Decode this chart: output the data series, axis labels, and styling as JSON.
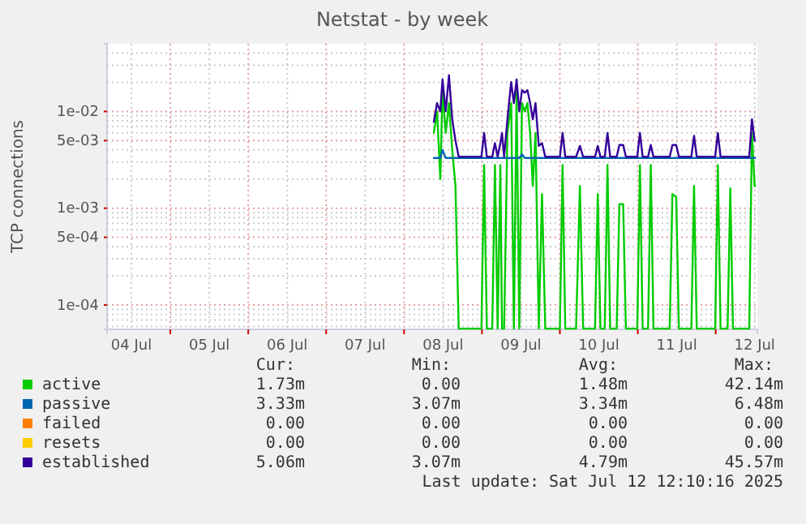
{
  "chart_data": {
    "type": "line",
    "title": "Netstat - by week",
    "ylabel": "TCP connections",
    "log": true,
    "grid": true,
    "legend": "bottom",
    "xlim": [
      "2025-07-04T04:30",
      "2025-07-12T12:50"
    ],
    "xticks": [
      {
        "value": "2025-07-04T12:00",
        "label": "04 Jul"
      },
      {
        "value": "2025-07-05T00:00",
        "label": null
      },
      {
        "value": "2025-07-05T12:00",
        "label": "05 Jul"
      },
      {
        "value": "2025-07-06T00:00",
        "label": null
      },
      {
        "value": "2025-07-06T12:00",
        "label": "06 Jul"
      },
      {
        "value": "2025-07-07T00:00",
        "label": null
      },
      {
        "value": "2025-07-07T12:00",
        "label": "07 Jul"
      },
      {
        "value": "2025-07-08T00:00",
        "label": null
      },
      {
        "value": "2025-07-08T12:00",
        "label": "08 Jul"
      },
      {
        "value": "2025-07-09T00:00",
        "label": null
      },
      {
        "value": "2025-07-09T12:00",
        "label": "09 Jul"
      },
      {
        "value": "2025-07-10T00:00",
        "label": null
      },
      {
        "value": "2025-07-10T12:00",
        "label": "10 Jul"
      },
      {
        "value": "2025-07-11T00:00",
        "label": null
      },
      {
        "value": "2025-07-11T12:00",
        "label": "11 Jul"
      },
      {
        "value": "2025-07-12T00:00",
        "label": null
      },
      {
        "value": "2025-07-12T12:00",
        "label": "12 Jul"
      }
    ],
    "ylim": [
      5.6e-05,
      0.05
    ],
    "yticks": [
      {
        "value": 6e-05,
        "label": null
      },
      {
        "value": 7e-05,
        "label": null
      },
      {
        "value": 8e-05,
        "label": null
      },
      {
        "value": 9e-05,
        "label": null
      },
      {
        "value": 0.0001,
        "label": "1e-04"
      },
      {
        "value": 0.0002,
        "label": null
      },
      {
        "value": 0.0003,
        "label": null
      },
      {
        "value": 0.0004,
        "label": null
      },
      {
        "value": 0.0005,
        "label": "5e-04"
      },
      {
        "value": 0.0006,
        "label": null
      },
      {
        "value": 0.0007,
        "label": null
      },
      {
        "value": 0.0008,
        "label": null
      },
      {
        "value": 0.0009,
        "label": null
      },
      {
        "value": 0.001,
        "label": "1e-03"
      },
      {
        "value": 0.002,
        "label": null
      },
      {
        "value": 0.003,
        "label": null
      },
      {
        "value": 0.004,
        "label": null
      },
      {
        "value": 0.005,
        "label": "5e-03"
      },
      {
        "value": 0.006,
        "label": null
      },
      {
        "value": 0.007,
        "label": null
      },
      {
        "value": 0.008,
        "label": null
      },
      {
        "value": 0.009,
        "label": null
      },
      {
        "value": 0.01,
        "label": "1e-02"
      },
      {
        "value": 0.02,
        "label": null
      },
      {
        "value": 0.03,
        "label": null
      },
      {
        "value": 0.04,
        "label": null
      }
    ],
    "x": [
      "2025-07-08T09:10",
      "2025-07-08T10:10",
      "2025-07-08T11:10",
      "2025-07-08T11:50",
      "2025-07-08T12:50",
      "2025-07-08T13:50",
      "2025-07-08T14:50",
      "2025-07-08T15:50",
      "2025-07-08T16:50",
      "2025-07-08T18:50",
      "2025-07-08T23:50",
      "2025-07-09T00:40",
      "2025-07-09T01:30",
      "2025-07-09T03:10",
      "2025-07-09T04:00",
      "2025-07-09T04:50",
      "2025-07-09T05:40",
      "2025-07-09T06:10",
      "2025-07-09T06:50",
      "2025-07-09T07:50",
      "2025-07-09T09:00",
      "2025-07-09T09:50",
      "2025-07-09T10:40",
      "2025-07-09T11:30",
      "2025-07-09T12:20",
      "2025-07-09T13:10",
      "2025-07-09T14:00",
      "2025-07-09T14:50",
      "2025-07-09T15:40",
      "2025-07-09T16:30",
      "2025-07-09T17:30",
      "2025-07-09T18:30",
      "2025-07-09T19:30",
      "2025-07-10T00:00",
      "2025-07-10T00:50",
      "2025-07-10T01:40",
      "2025-07-10T05:00",
      "2025-07-10T06:10",
      "2025-07-10T07:10",
      "2025-07-10T10:50",
      "2025-07-10T11:40",
      "2025-07-10T12:30",
      "2025-07-10T13:50",
      "2025-07-10T14:40",
      "2025-07-10T15:30",
      "2025-07-10T17:30",
      "2025-07-10T18:20",
      "2025-07-10T19:30",
      "2025-07-10T20:20",
      "2025-07-10T23:50",
      "2025-07-11T00:40",
      "2025-07-11T01:30",
      "2025-07-11T03:10",
      "2025-07-11T04:00",
      "2025-07-11T04:50",
      "2025-07-11T09:50",
      "2025-07-11T10:40",
      "2025-07-11T11:50",
      "2025-07-11T12:40",
      "2025-07-11T16:30",
      "2025-07-11T17:20",
      "2025-07-11T18:10",
      "2025-07-11T23:50",
      "2025-07-12T00:40",
      "2025-07-12T01:30",
      "2025-07-12T03:40",
      "2025-07-12T04:30",
      "2025-07-12T05:20",
      "2025-07-12T08:40",
      "2025-07-12T10:20",
      "2025-07-12T11:10",
      "2025-07-12T12:00",
      "2025-07-12T12:10"
    ],
    "series": [
      {
        "name": "active",
        "color": "#00cc00",
        "values": [
          0.006,
          0.01,
          0.002,
          0.0166,
          0.006,
          0.0122,
          0.004,
          0.0017,
          5.7e-05,
          5.7e-05,
          5.7e-05,
          0.0028,
          5.7e-05,
          5.7e-05,
          0.0028,
          5.7e-05,
          0.0028,
          5.7e-05,
          5.7e-05,
          0.006,
          0.0122,
          5.7e-05,
          0.0166,
          5.7e-05,
          0.0122,
          0.01,
          0.0122,
          0.006,
          0.0017,
          0.006,
          5.7e-05,
          0.0014,
          5.7e-05,
          5.7e-05,
          0.0028,
          5.7e-05,
          5.7e-05,
          0.0017,
          5.7e-05,
          5.7e-05,
          0.0014,
          5.7e-05,
          5.7e-05,
          0.0028,
          5.7e-05,
          5.7e-05,
          0.0011,
          0.0011,
          5.7e-05,
          5.7e-05,
          0.0028,
          5.7e-05,
          5.7e-05,
          0.0028,
          5.7e-05,
          5.7e-05,
          0.0014,
          0.0013,
          5.7e-05,
          5.7e-05,
          0.0017,
          5.7e-05,
          5.7e-05,
          0.0028,
          5.7e-05,
          5.7e-05,
          0.0016,
          5.7e-05,
          5.7e-05,
          5.7e-05,
          0.006,
          0.0017,
          0.0017
        ]
      },
      {
        "name": "passive",
        "color": "#0066b3",
        "values": [
          0.0033,
          0.0033,
          0.0033,
          0.004,
          0.0033,
          0.0033,
          0.0033,
          0.0033,
          0.0033,
          0.0033,
          0.0033,
          0.0033,
          0.0033,
          0.0033,
          0.0033,
          0.0033,
          0.0033,
          0.0033,
          0.0033,
          0.0033,
          0.0033,
          0.0033,
          0.0033,
          0.0033,
          0.0036,
          0.0033,
          0.0033,
          0.0033,
          0.0033,
          0.0033,
          0.0033,
          0.0033,
          0.0033,
          0.0033,
          0.0033,
          0.0033,
          0.0033,
          0.0033,
          0.0033,
          0.0033,
          0.0033,
          0.0033,
          0.0033,
          0.0033,
          0.0033,
          0.0033,
          0.0033,
          0.0033,
          0.0033,
          0.0033,
          0.0033,
          0.0033,
          0.0033,
          0.0033,
          0.0033,
          0.0033,
          0.0033,
          0.0033,
          0.0033,
          0.0033,
          0.0033,
          0.0033,
          0.0033,
          0.0033,
          0.0033,
          0.0033,
          0.0033,
          0.0033,
          0.0033,
          0.0033,
          0.0033,
          0.0033,
          0.0033
        ]
      },
      {
        "name": "failed",
        "color": "#ff8000",
        "values": [
          null,
          null,
          null,
          null,
          null,
          null,
          null,
          null,
          null,
          null,
          null,
          null,
          null,
          null,
          null,
          null,
          null,
          null,
          null,
          null,
          null,
          null,
          null,
          null,
          null,
          null,
          null,
          null,
          null,
          null,
          null,
          null,
          null,
          null,
          null,
          null,
          null,
          null,
          null,
          null,
          null,
          null,
          null,
          null,
          null,
          null,
          null,
          null,
          null,
          null,
          null,
          null,
          null,
          null,
          null,
          null,
          null,
          null,
          null,
          null,
          null,
          null,
          null,
          null,
          null,
          null,
          null,
          null,
          null,
          null,
          null,
          null,
          null
        ]
      },
      {
        "name": "resets",
        "color": "#ffcc00",
        "values": [
          null,
          null,
          null,
          null,
          null,
          null,
          null,
          null,
          null,
          null,
          null,
          null,
          null,
          null,
          null,
          null,
          null,
          null,
          null,
          null,
          null,
          null,
          null,
          null,
          null,
          null,
          null,
          null,
          null,
          null,
          null,
          null,
          null,
          null,
          null,
          null,
          null,
          null,
          null,
          null,
          null,
          null,
          null,
          null,
          null,
          null,
          null,
          null,
          null,
          null,
          null,
          null,
          null,
          null,
          null,
          null,
          null,
          null,
          null,
          null,
          null,
          null,
          null,
          null,
          null,
          null,
          null,
          null,
          null,
          null,
          null,
          null,
          null
        ]
      },
      {
        "name": "established",
        "color": "#330099",
        "values": [
          0.0078,
          0.0122,
          0.01,
          0.0214,
          0.01,
          0.0237,
          0.0083,
          0.005,
          0.0034,
          0.0034,
          0.0034,
          0.006,
          0.0034,
          0.0034,
          0.0047,
          0.0034,
          0.0047,
          0.006,
          0.0034,
          0.0083,
          0.0201,
          0.0122,
          0.0214,
          0.01,
          0.0166,
          0.0156,
          0.0166,
          0.0122,
          0.0083,
          0.0122,
          0.0044,
          0.0047,
          0.0034,
          0.0034,
          0.006,
          0.0034,
          0.0034,
          0.0044,
          0.0034,
          0.0034,
          0.0044,
          0.0034,
          0.0034,
          0.006,
          0.0034,
          0.0034,
          0.0045,
          0.0045,
          0.0034,
          0.0034,
          0.006,
          0.0034,
          0.0034,
          0.0045,
          0.0034,
          0.0034,
          0.0045,
          0.0045,
          0.0034,
          0.0034,
          0.0056,
          0.0034,
          0.0034,
          0.006,
          0.0034,
          0.0034,
          0.0034,
          0.0034,
          0.0034,
          0.0034,
          0.0083,
          0.005,
          0.005
        ]
      }
    ],
    "annotations": [
      "Cur:",
      "Min:",
      "Avg:",
      "Max:",
      "1.73m",
      "0.00",
      "1.48m",
      "42.14m",
      "3.33m",
      "3.07m",
      "3.34m",
      "6.48m",
      "0.00",
      "0.00",
      "0.00",
      "0.00",
      "0.00",
      "0.00",
      "0.00",
      "0.00",
      "5.06m",
      "3.07m",
      "4.79m",
      "45.57m",
      "Last update: Sat Jul 12 12:10:16 2025"
    ]
  }
}
